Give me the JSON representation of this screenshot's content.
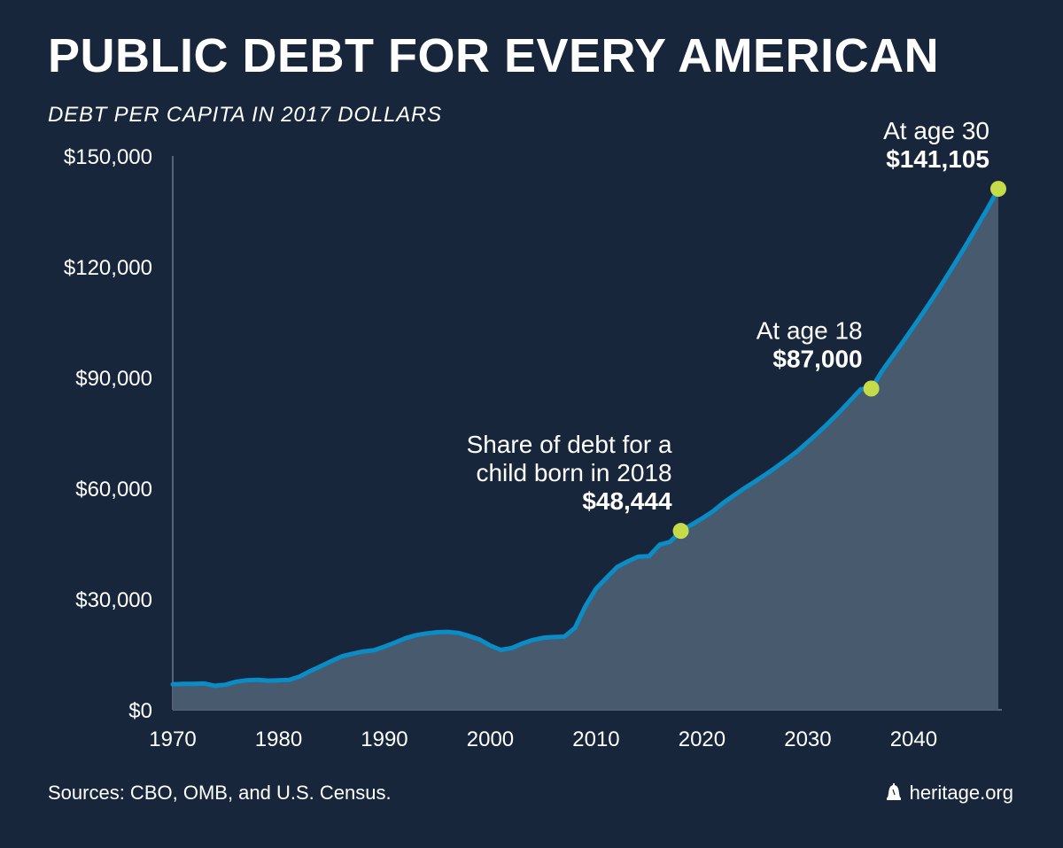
{
  "header": {
    "title": "PUBLIC DEBT FOR EVERY AMERICAN",
    "subtitle": "DEBT PER CAPITA IN 2017 DOLLARS"
  },
  "footer": {
    "sources": "Sources: CBO, OMB, and U.S. Census.",
    "site": "heritage.org",
    "site_icon": "liberty-bell-icon"
  },
  "colors": {
    "background": "#18263b",
    "line": "#0a8cc7",
    "area": "#475a6e",
    "marker": "#c5db4a",
    "axis": "#6b7c90"
  },
  "chart_data": {
    "type": "area",
    "title": "PUBLIC DEBT FOR EVERY AMERICAN",
    "subtitle": "DEBT PER CAPITA IN 2017 DOLLARS",
    "xlabel": "",
    "ylabel": "",
    "xlim": [
      1970,
      2048
    ],
    "ylim": [
      0,
      150000
    ],
    "x_ticks": [
      1970,
      1980,
      1990,
      2000,
      2010,
      2020,
      2030,
      2040
    ],
    "y_ticks": [
      0,
      30000,
      60000,
      90000,
      120000,
      150000
    ],
    "y_tick_labels": [
      "$0",
      "$30,000",
      "$60,000",
      "$90,000",
      "$120,000",
      "$150,000"
    ],
    "grid": false,
    "series": [
      {
        "x": [
          1970,
          1971,
          1972,
          1973,
          1974,
          1975,
          1976,
          1977,
          1978,
          1979,
          1980,
          1981,
          1982,
          1983,
          1984,
          1985,
          1986,
          1987,
          1988,
          1989,
          1990,
          1991,
          1992,
          1993,
          1994,
          1995,
          1996,
          1997,
          1998,
          1999,
          2000,
          2001,
          2002,
          2003,
          2004,
          2005,
          2006,
          2007,
          2008,
          2009,
          2010,
          2011,
          2012,
          2013,
          2014,
          2015,
          2016,
          2017,
          2018,
          2019,
          2020,
          2021,
          2022,
          2023,
          2024,
          2025,
          2026,
          2027,
          2028,
          2029,
          2030,
          2031,
          2032,
          2033,
          2034,
          2035,
          2036,
          2037,
          2038,
          2039,
          2040,
          2041,
          2042,
          2043,
          2044,
          2045,
          2046,
          2047,
          2048
        ],
        "values": [
          6900,
          7000,
          7000,
          7100,
          6500,
          6800,
          7600,
          8000,
          8100,
          7900,
          8000,
          8100,
          9000,
          10500,
          11800,
          13200,
          14500,
          15200,
          15800,
          16100,
          17100,
          18200,
          19400,
          20200,
          20700,
          21000,
          21100,
          20800,
          20000,
          19000,
          17400,
          16200,
          16700,
          17900,
          18900,
          19500,
          19700,
          19800,
          22200,
          28100,
          32800,
          35800,
          38700,
          40200,
          41500,
          41600,
          44700,
          45500,
          48444,
          50100,
          51800,
          53700,
          56000,
          58000,
          60000,
          61800,
          63700,
          65700,
          67800,
          70000,
          72500,
          75100,
          77800,
          80700,
          83700,
          86800,
          87000,
          91700,
          95700,
          99700,
          103800,
          108000,
          112300,
          116800,
          121400,
          126100,
          131000,
          135900,
          141105
        ]
      }
    ],
    "annotations": [
      {
        "x": 2018,
        "y": 48444,
        "lines": [
          "Share of debt for a",
          "child born in 2018"
        ],
        "value": "$48,444"
      },
      {
        "x": 2036,
        "y": 87000,
        "lines": [
          "At age 18"
        ],
        "value": "$87,000"
      },
      {
        "x": 2048,
        "y": 141105,
        "lines": [
          "At age 30"
        ],
        "value": "$141,105"
      }
    ]
  }
}
